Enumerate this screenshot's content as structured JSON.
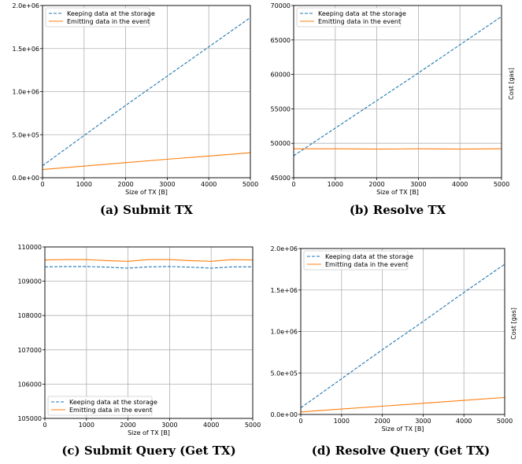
{
  "colors": {
    "storage": "#1f77b4",
    "event": "#ff7f0e",
    "grid": "#b0b0b0",
    "axis": "#000000"
  },
  "chart_data": [
    {
      "type": "line",
      "caption": "(a)  Submit TX",
      "xlabel": "Size of TX [B]",
      "ylabel": "",
      "xlim": [
        0,
        5000
      ],
      "ylim": [
        0,
        2000000
      ],
      "xticks": [
        "0",
        "1000",
        "2000",
        "3000",
        "4000",
        "5000"
      ],
      "yticks": [
        "0.0e+00",
        "5.0e+05",
        "1.0e+06",
        "1.5e+06",
        "2.0e+06"
      ],
      "yticks_values": [
        0,
        500000,
        1000000,
        1500000,
        2000000
      ],
      "grid": true,
      "legend_position": "top-left",
      "series": [
        {
          "name": "Keeping data at the storage",
          "style": "dashed",
          "color": "#1f77b4",
          "x": [
            0,
            1000,
            2000,
            3000,
            4000,
            5000
          ],
          "y": [
            140000,
            490000,
            840000,
            1180000,
            1520000,
            1860000
          ]
        },
        {
          "name": "Emitting data in the event",
          "style": "solid",
          "color": "#ff7f0e",
          "x": [
            0,
            1000,
            2000,
            3000,
            4000,
            5000
          ],
          "y": [
            95000,
            135000,
            175000,
            215000,
            252000,
            290000
          ]
        }
      ]
    },
    {
      "type": "line",
      "caption": "(b)  Resolve TX",
      "xlabel": "Size of TX [B]",
      "ylabel": "Cost [gas]",
      "xlim": [
        0,
        5000
      ],
      "ylim": [
        45000,
        70000
      ],
      "xticks": [
        "0",
        "1000",
        "2000",
        "3000",
        "4000",
        "5000"
      ],
      "yticks": [
        "45000",
        "50000",
        "55000",
        "60000",
        "65000",
        "70000"
      ],
      "yticks_values": [
        45000,
        50000,
        55000,
        60000,
        65000,
        70000
      ],
      "grid": true,
      "legend_position": "top-left",
      "series": [
        {
          "name": "Keeping data at the storage",
          "style": "dashed",
          "color": "#1f77b4",
          "x": [
            0,
            1000,
            2000,
            3000,
            4000,
            5000
          ],
          "y": [
            48200,
            52200,
            56200,
            60200,
            64300,
            68400
          ]
        },
        {
          "name": "Emitting data in the event",
          "style": "solid",
          "color": "#ff7f0e",
          "x": [
            0,
            1000,
            2000,
            3000,
            4000,
            5000
          ],
          "y": [
            49200,
            49200,
            49150,
            49200,
            49150,
            49200
          ]
        }
      ]
    },
    {
      "type": "line",
      "caption": "(c)  Submit Query (Get TX)",
      "xlabel": "Size of TX [B]",
      "ylabel": "",
      "xlim": [
        0,
        5000
      ],
      "ylim": [
        105000,
        110000
      ],
      "xticks": [
        "0",
        "1000",
        "2000",
        "3000",
        "4000",
        "5000"
      ],
      "yticks": [
        "105000",
        "106000",
        "107000",
        "108000",
        "109000",
        "110000"
      ],
      "yticks_values": [
        105000,
        106000,
        107000,
        108000,
        109000,
        110000
      ],
      "grid": true,
      "legend_position": "bottom-left",
      "series": [
        {
          "name": "Keeping data at the storage",
          "style": "dashed",
          "color": "#1f77b4",
          "x": [
            0,
            500,
            1000,
            1500,
            2000,
            2500,
            3000,
            3500,
            4000,
            4500,
            5000
          ],
          "y": [
            109420,
            109430,
            109430,
            109410,
            109380,
            109420,
            109430,
            109410,
            109380,
            109420,
            109420
          ]
        },
        {
          "name": "Emitting data in the event",
          "style": "solid",
          "color": "#ff7f0e",
          "x": [
            0,
            500,
            1000,
            1500,
            2000,
            2500,
            3000,
            3500,
            4000,
            4500,
            5000
          ],
          "y": [
            109620,
            109630,
            109630,
            109600,
            109580,
            109630,
            109630,
            109600,
            109580,
            109630,
            109620
          ]
        }
      ]
    },
    {
      "type": "line",
      "caption": "(d)  Resolve Query (Get TX)",
      "xlabel": "Size of TX [B]",
      "ylabel": "Cost [gas]",
      "xlim": [
        0,
        5000
      ],
      "ylim": [
        0,
        2000000
      ],
      "xticks": [
        "0",
        "1000",
        "2000",
        "3000",
        "4000",
        "5000"
      ],
      "yticks": [
        "0.0e+00",
        "5.0e+05",
        "1.0e+06",
        "1.5e+06",
        "2.0e+06"
      ],
      "yticks_values": [
        0,
        500000,
        1000000,
        1500000,
        2000000
      ],
      "grid": true,
      "legend_position": "top-left",
      "series": [
        {
          "name": "Keeping data at the storage",
          "style": "dashed",
          "color": "#1f77b4",
          "x": [
            0,
            1000,
            2000,
            3000,
            4000,
            5000
          ],
          "y": [
            80000,
            430000,
            780000,
            1120000,
            1470000,
            1810000
          ]
        },
        {
          "name": "Emitting data in the event",
          "style": "solid",
          "color": "#ff7f0e",
          "x": [
            0,
            1000,
            2000,
            3000,
            4000,
            5000
          ],
          "y": [
            30000,
            65000,
            100000,
            135000,
            170000,
            205000
          ]
        }
      ]
    }
  ]
}
